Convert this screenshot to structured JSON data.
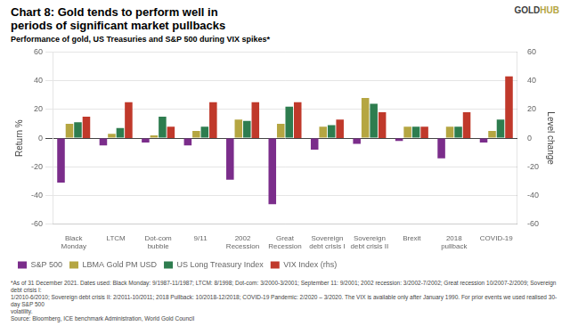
{
  "chart_data": {
    "type": "bar",
    "title": [
      "Chart 8: Gold tends to perform well in",
      "periods of significant market pullbacks"
    ],
    "subtitle": "Performance of gold, US Treasuries and S&P 500 during VIX spikes*",
    "y_label": "Return %",
    "y2_label": "Level change",
    "categories": [
      "Black\nMonday",
      "LTCM",
      "Dot-com\nbubble",
      "9/11",
      "2002\nRecession",
      "Great\nRecession",
      "Sovereign\ndebt crisis I",
      "Sovereign\ndebt crisis II",
      "Brexit",
      "2018\npullback",
      "COVID-19"
    ],
    "series": [
      {
        "name": "S&P 500",
        "color": "#7b2d8b",
        "values": [
          -31,
          -5,
          -3,
          -5,
          -29,
          -46,
          -8,
          -4,
          -2,
          -14,
          -3
        ]
      },
      {
        "name": "LBMA Gold PM USD",
        "color": "#b5a642",
        "values": [
          10,
          3,
          2,
          5,
          13,
          10,
          8,
          28,
          8,
          8,
          5
        ]
      },
      {
        "name": "US Long Treasury Index",
        "color": "#2e7d4f",
        "values": [
          11,
          7,
          15,
          8,
          12,
          22,
          9,
          24,
          8,
          8,
          13
        ]
      },
      {
        "name": "VIX Index (rhs)",
        "color": "#c0392b",
        "axis": "y2",
        "values": [
          15,
          25,
          8,
          25,
          25,
          25,
          13,
          18,
          8,
          18,
          43
        ]
      }
    ],
    "ylim": [
      -60,
      60
    ],
    "yticks": [
      -60,
      -40,
      -20,
      0,
      20,
      40,
      60
    ],
    "y2lim": [
      -60,
      60
    ],
    "y2ticks": [
      -60,
      -40,
      -20,
      0,
      20,
      40,
      60
    ],
    "grid": true,
    "legend": "bottom",
    "annotations": [
      "GOLD",
      "HUB",
      "*As of 31 December 2021. Dates used: Black Monday: 9/1987-11/1987; LTCM: 8/1998; Dot-com: 3/2000-3/2001; September 11: 9/2001; 2002 recession: 3/2002-7/2002; Great recession 10/2007-2/2009; Sovereign debt crisis I:",
      "1/2010-6/2010; Sovereign debt crisis II: 2/2011-10/2011; 2018 Pullback: 10/2018-12/2018; COVID-19 Pandemic: 2/2020 – 3/2020. The VIX is available only after January 1990. For prior events we used realised 30-day S&P 500",
      "volatility.",
      "Source: Bloomberg, ICE benchmark Administration, World Gold Council"
    ]
  }
}
